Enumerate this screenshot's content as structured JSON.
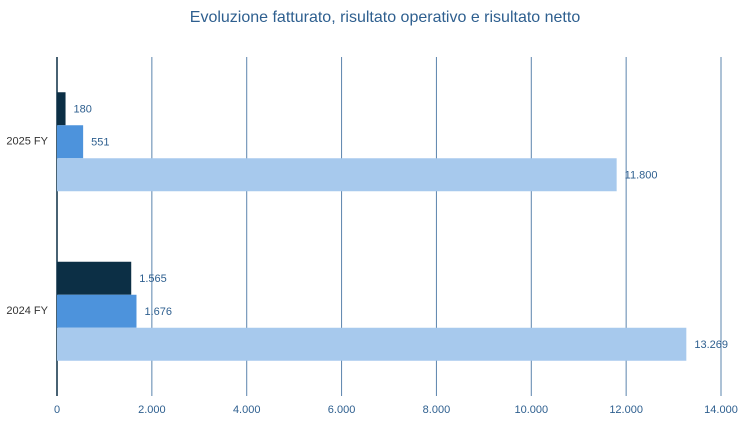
{
  "chart_data": {
    "type": "hbar",
    "title": "Evoluzione fatturato, risultato operativo e risultato netto",
    "categories": [
      "2025 FY",
      "2024 FY"
    ],
    "series": [
      {
        "color": "#0c2f45",
        "values": [
          180,
          1565
        ],
        "value_labels": [
          "180",
          "1.565"
        ]
      },
      {
        "color": "#4d93dc",
        "values": [
          551,
          1676
        ],
        "value_labels": [
          "551",
          "1.676"
        ]
      },
      {
        "color": "#a7c9ed",
        "values": [
          11800,
          13269
        ],
        "value_labels": [
          "11.800",
          "13.269"
        ]
      }
    ],
    "xlim": [
      0,
      14000
    ],
    "xticks": [
      0,
      {
        "value": 2000,
        "label": "2.000"
      },
      {
        "value": 4000,
        "label": "4.000"
      },
      {
        "value": 6000,
        "label": "6.000"
      },
      {
        "value": 8000,
        "label": "8.000"
      },
      {
        "value": 10000,
        "label": "10.000"
      },
      {
        "value": 12000,
        "label": "12.000"
      },
      {
        "value": 14000,
        "label": "14.000"
      }
    ],
    "grid": true
  }
}
